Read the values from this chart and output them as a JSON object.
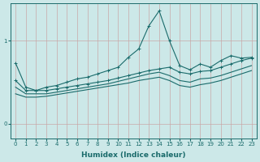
{
  "xlabel": "Humidex (Indice chaleur)",
  "background_color": "#cce8e8",
  "grid_color": "#b0d0d0",
  "line_color": "#1a6b6b",
  "xlim": [
    -0.5,
    23.5
  ],
  "ylim": [
    -0.18,
    1.45
  ],
  "yticks": [
    0,
    1
  ],
  "xticks": [
    0,
    1,
    2,
    3,
    4,
    5,
    6,
    7,
    8,
    9,
    10,
    11,
    12,
    13,
    14,
    15,
    16,
    17,
    18,
    19,
    20,
    21,
    22,
    23
  ],
  "series1_x": [
    0,
    1,
    2,
    3,
    4,
    5,
    6,
    7,
    8,
    9,
    10,
    11,
    12,
    13,
    14,
    15,
    16,
    17,
    18,
    19,
    20,
    21,
    22,
    23
  ],
  "series1_y": [
    0.73,
    0.44,
    0.4,
    0.44,
    0.46,
    0.5,
    0.54,
    0.56,
    0.6,
    0.64,
    0.68,
    0.8,
    0.9,
    1.18,
    1.36,
    1.0,
    0.7,
    0.65,
    0.72,
    0.68,
    0.76,
    0.82,
    0.79,
    0.8
  ],
  "series2_x": [
    0,
    1,
    2,
    3,
    4,
    5,
    6,
    7,
    8,
    9,
    10,
    11,
    12,
    13,
    14,
    15,
    16,
    17,
    18,
    19,
    20,
    21,
    22,
    23
  ],
  "series2_y": [
    0.52,
    0.4,
    0.4,
    0.4,
    0.42,
    0.44,
    0.46,
    0.48,
    0.5,
    0.52,
    0.55,
    0.58,
    0.61,
    0.64,
    0.66,
    0.68,
    0.62,
    0.6,
    0.63,
    0.64,
    0.68,
    0.72,
    0.76,
    0.79
  ],
  "series3_x": [
    0,
    1,
    2,
    3,
    4,
    5,
    6,
    7,
    8,
    9,
    10,
    11,
    12,
    13,
    14,
    15,
    16,
    17,
    18,
    19,
    20,
    21,
    22,
    23
  ],
  "series3_y": [
    0.44,
    0.36,
    0.36,
    0.36,
    0.38,
    0.4,
    0.42,
    0.44,
    0.46,
    0.48,
    0.51,
    0.54,
    0.57,
    0.6,
    0.62,
    0.58,
    0.52,
    0.5,
    0.54,
    0.55,
    0.58,
    0.62,
    0.66,
    0.7
  ],
  "series4_x": [
    0,
    1,
    2,
    3,
    4,
    5,
    6,
    7,
    8,
    9,
    10,
    11,
    12,
    13,
    14,
    15,
    16,
    17,
    18,
    19,
    20,
    21,
    22,
    23
  ],
  "series4_y": [
    0.36,
    0.32,
    0.32,
    0.33,
    0.35,
    0.37,
    0.39,
    0.41,
    0.43,
    0.45,
    0.47,
    0.49,
    0.52,
    0.54,
    0.56,
    0.52,
    0.46,
    0.44,
    0.47,
    0.49,
    0.52,
    0.56,
    0.6,
    0.64
  ],
  "marker": "+",
  "linewidth": 0.8,
  "markersize": 3,
  "tick_fontsize": 5,
  "label_fontsize": 6.5
}
